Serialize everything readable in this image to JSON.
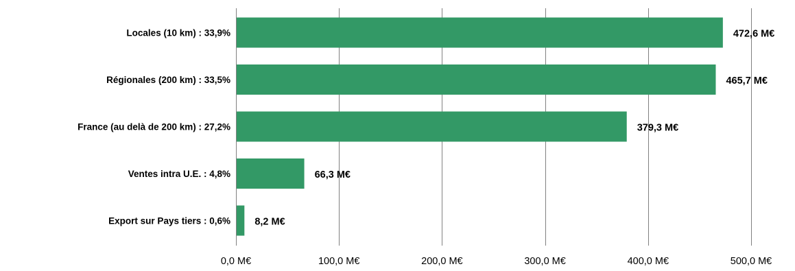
{
  "chart_data": {
    "type": "bar",
    "orientation": "horizontal",
    "title": "",
    "xlabel": "",
    "ylabel": "",
    "categories": [
      "Locales (10 km) : 33,9%",
      "Régionales (200 km) : 33,5%",
      "France (au delà de 200 km) : 27,2%",
      "Ventes intra U.E. : 4,8%",
      "Export sur Pays tiers : 0,6%"
    ],
    "values": [
      472.6,
      465.7,
      379.3,
      66.3,
      8.2
    ],
    "value_labels": [
      "472,6 M€",
      "465,7 M€",
      "379,3 M€",
      "66,3 M€",
      "8,2 M€"
    ],
    "xlim": [
      0,
      500
    ],
    "x_ticks": [
      0,
      100,
      200,
      300,
      400,
      500
    ],
    "x_tick_labels": [
      "0,0 M€",
      "100,0 M€",
      "200,0 M€",
      "300,0 M€",
      "400,0 M€",
      "500,0 M€"
    ],
    "grid": "vertical",
    "legend": "none",
    "bar_color": "#339966",
    "grid_color": "#808080"
  }
}
